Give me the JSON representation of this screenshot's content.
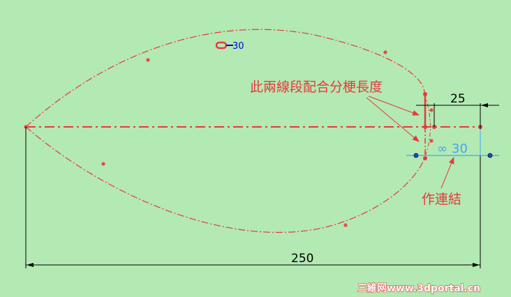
{
  "sketch": {
    "annotation_top": "此兩線段配合分梗長度",
    "annotation_bottom": "作連結",
    "dim_horizontal_small": "25",
    "dim_overall": "250",
    "linked_dim_symbol": "∞",
    "linked_dim_value": "30",
    "relation_tag_value": "30",
    "colors": {
      "background": "#b3e9b3",
      "sketch": "#e8383a",
      "dimension": "#000000",
      "linked": "#44a6f0"
    }
  },
  "watermark": "三維网www.3dportal.cn"
}
